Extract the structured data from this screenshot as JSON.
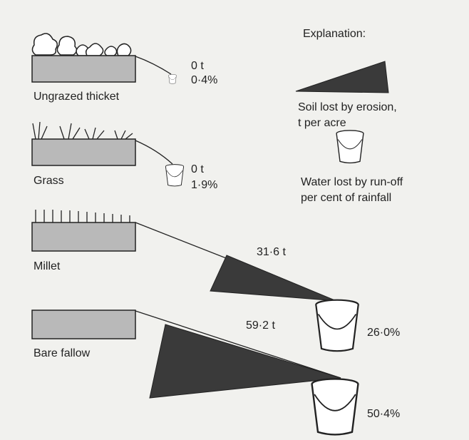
{
  "explanation": {
    "title": "Explanation:",
    "soil_line1": "Soil lost by erosion,",
    "soil_line2": "t per acre",
    "water_line1": "Water lost by run-off",
    "water_line2": "per cent of rainfall"
  },
  "rows": [
    {
      "label": "Ungrazed thicket",
      "soil": "0 t",
      "water": "0·4%"
    },
    {
      "label": "Grass",
      "soil": "0 t",
      "water": "1·9%"
    },
    {
      "label": "Millet",
      "soil": "31·6 t",
      "water": "26·0%"
    },
    {
      "label": "Bare fallow",
      "soil": "59·2 t",
      "water": "50·4%"
    }
  ]
}
